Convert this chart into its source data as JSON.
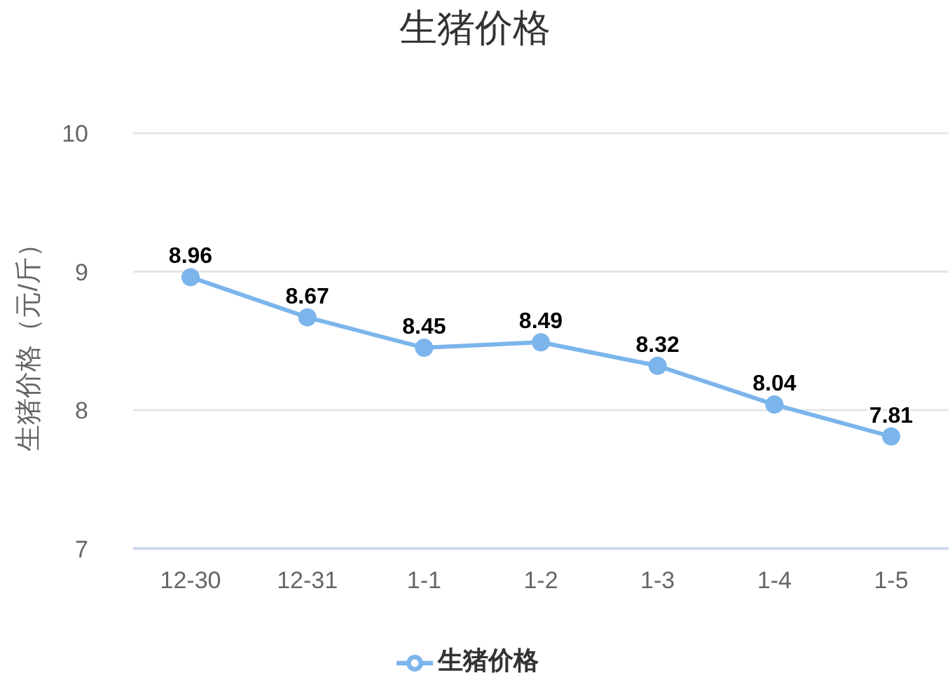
{
  "chart_data": {
    "type": "line",
    "title": "生猪价格",
    "ylabel": "生猪价格（元/斤）",
    "categories": [
      "12-30",
      "12-31",
      "1-1",
      "1-2",
      "1-3",
      "1-4",
      "1-5"
    ],
    "series": [
      {
        "name": "生猪价格",
        "color": "#7cb5ec",
        "values": [
          8.96,
          8.67,
          8.45,
          8.49,
          8.32,
          8.04,
          7.81
        ]
      }
    ],
    "ylim": [
      7,
      10
    ],
    "yticks": [
      7,
      8,
      9,
      10
    ],
    "grid": "y",
    "legend": "bottom",
    "marker": "circle",
    "line_style": "solid",
    "data_labels": true
  }
}
